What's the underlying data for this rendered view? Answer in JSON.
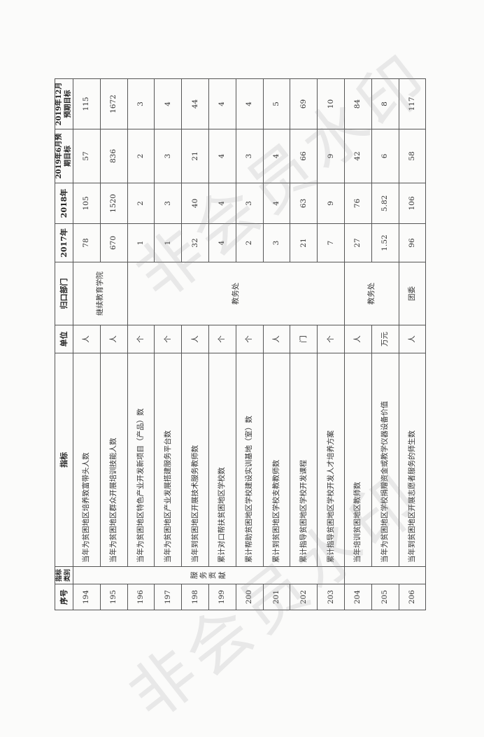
{
  "header": {
    "serial": "序号",
    "category": "指标类别",
    "indicator": "指标",
    "unit": "单位",
    "department": "归口部门",
    "y2017": "2017年",
    "y2018": "2018年",
    "target_2019_06": "2019年6月预期目标",
    "target_2019_12": "2019年12月预期目标"
  },
  "category_label": "服务贡献",
  "departments": [
    "继续教育学院",
    "教务处",
    "教务处",
    "团委"
  ],
  "rows": [
    {
      "no": "194",
      "indicator": "当年为贫困地区培养致富带头人数",
      "unit": "人",
      "y2017": "78",
      "y2018": "105",
      "t1": "57",
      "t2": "115"
    },
    {
      "no": "195",
      "indicator": "当年为贫困地区群众开展培训技能人数",
      "unit": "人",
      "y2017": "670",
      "y2018": "1520",
      "t1": "836",
      "t2": "1672"
    },
    {
      "no": "196",
      "indicator": "当年为贫困地区特色产业开发新项目（产品）数",
      "unit": "个",
      "y2017": "1",
      "y2018": "2",
      "t1": "2",
      "t2": "3"
    },
    {
      "no": "197",
      "indicator": "当年为贫困地区产业发展搭建服务平台数",
      "unit": "个",
      "y2017": "1",
      "y2018": "3",
      "t1": "3",
      "t2": "4"
    },
    {
      "no": "198",
      "indicator": "当年到贫困地区开展技术服务教师数",
      "unit": "人",
      "y2017": "32",
      "y2018": "40",
      "t1": "21",
      "t2": "44"
    },
    {
      "no": "199",
      "indicator": "累计对口帮扶贫困地区学校数",
      "unit": "个",
      "y2017": "4",
      "y2018": "4",
      "t1": "4",
      "t2": "4"
    },
    {
      "no": "200",
      "indicator": "累计帮助贫困地区学校建设实训基地（室）数",
      "unit": "个",
      "y2017": "2",
      "y2018": "3",
      "t1": "3",
      "t2": "4"
    },
    {
      "no": "201",
      "indicator": "累计到贫困地区学校支教教师数",
      "unit": "人",
      "y2017": "3",
      "y2018": "4",
      "t1": "4",
      "t2": "5"
    },
    {
      "no": "202",
      "indicator": "累计指导贫困地区学校开发课程",
      "unit": "门",
      "y2017": "21",
      "y2018": "63",
      "t1": "66",
      "t2": "69"
    },
    {
      "no": "203",
      "indicator": "累计指导贫困地区学校开发人才培养方案",
      "unit": "个",
      "y2017": "7",
      "y2018": "9",
      "t1": "9",
      "t2": "10"
    },
    {
      "no": "204",
      "indicator": "当年培训贫困地区教师数",
      "unit": "人",
      "y2017": "27",
      "y2018": "76",
      "t1": "42",
      "t2": "84"
    },
    {
      "no": "205",
      "indicator": "当年为贫困地区学校捐赠资金或教学仪器设备价值",
      "unit": "万元",
      "y2017": "1.52",
      "y2018": "5.82",
      "t1": "6",
      "t2": "8"
    },
    {
      "no": "206",
      "indicator": "当年到贫困地区开展志愿者服务的师生数",
      "unit": "人",
      "y2017": "96",
      "y2018": "106",
      "t1": "58",
      "t2": "117"
    }
  ],
  "watermark": "非会员水印"
}
